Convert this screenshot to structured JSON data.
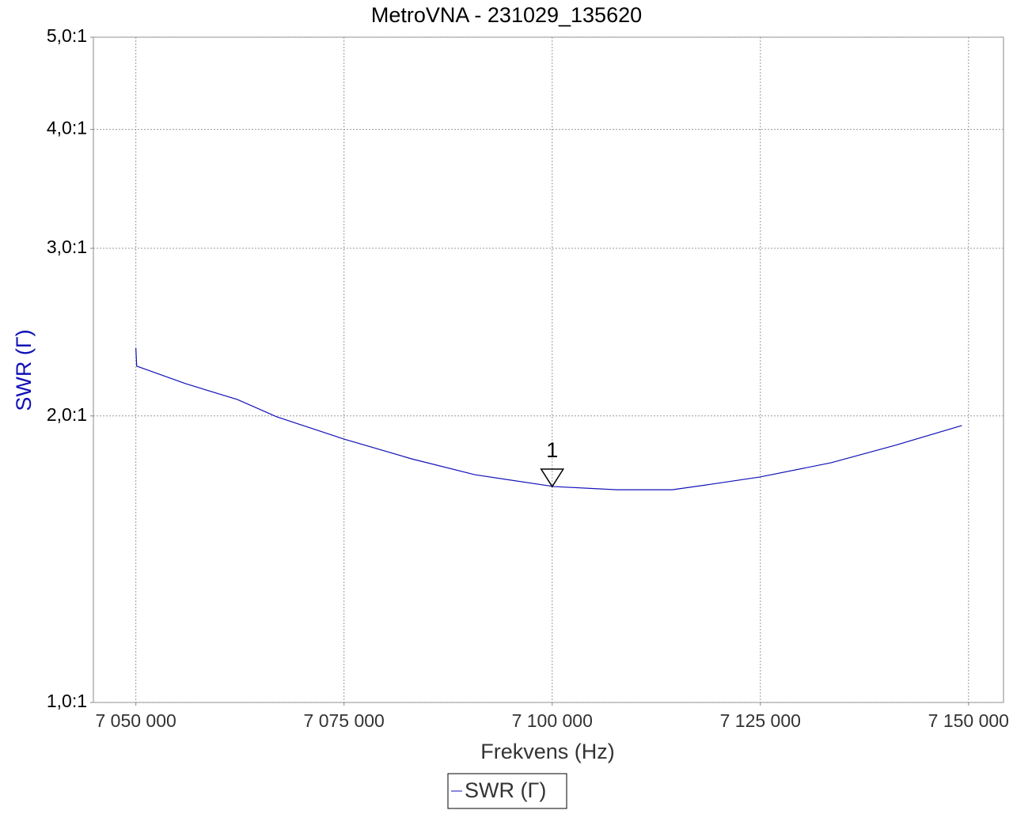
{
  "chart_data": {
    "type": "line",
    "title": "MetroVNA - 231029_135620",
    "xlabel": "Frekvens (Hz)",
    "ylabel": "SWR  (Γ)",
    "yscale": "log",
    "grid": true,
    "legend": "bottom",
    "xlim": [
      7044900,
      7154200
    ],
    "ylim": [
      1,
      5
    ],
    "xticks": [
      {
        "value": 7050000,
        "label": "7 050 000"
      },
      {
        "value": 7075000,
        "label": "7 075 000"
      },
      {
        "value": 7100000,
        "label": "7 100 000"
      },
      {
        "value": 7125000,
        "label": "7 125 000"
      },
      {
        "value": 7150000,
        "label": "7 150 000"
      }
    ],
    "yticks": [
      {
        "value": 1,
        "label": "1,0:1"
      },
      {
        "value": 2,
        "label": "2,0:1"
      },
      {
        "value": 3,
        "label": "3,0:1"
      },
      {
        "value": 4,
        "label": "4,0:1"
      },
      {
        "value": 5,
        "label": "5,0:1"
      }
    ],
    "x": [
      7050000,
      7050100,
      7056000,
      7062200,
      7066900,
      7075000,
      7083100,
      7090700,
      7100200,
      7107800,
      7114400,
      7119200,
      7124900,
      7133500,
      7141100,
      7149200
    ],
    "series": [
      {
        "name": "SWR  (Γ)",
        "color": "#1010b8",
        "values": [
          2.357,
          2.256,
          2.162,
          2.081,
          1.996,
          1.891,
          1.803,
          1.735,
          1.686,
          1.673,
          1.673,
          1.696,
          1.725,
          1.786,
          1.862,
          1.954
        ]
      }
    ],
    "markers": [
      {
        "label": "1",
        "x": 7100000,
        "y": 1.686
      }
    ]
  }
}
